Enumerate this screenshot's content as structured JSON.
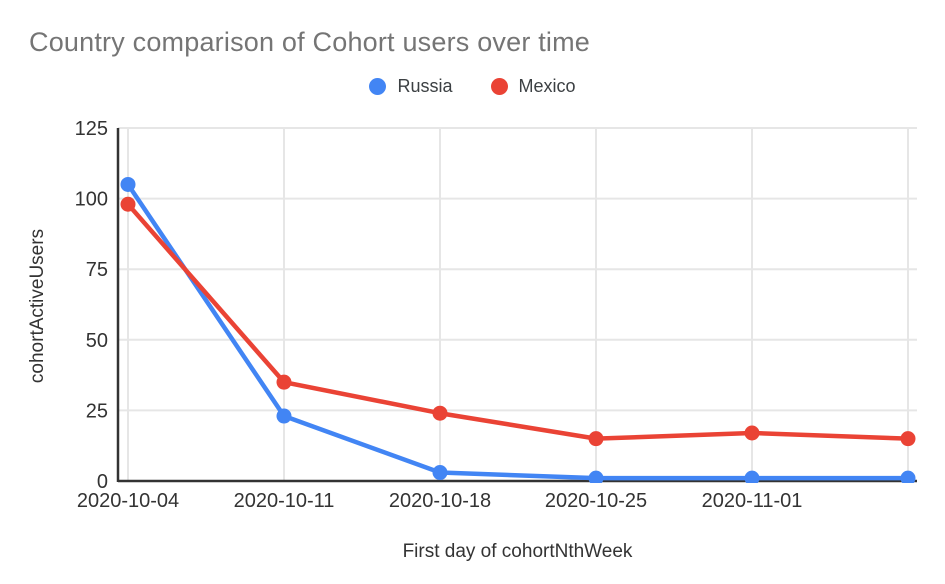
{
  "page": {
    "background": "#ffffff"
  },
  "chart": {
    "title": "Country comparison of Cohort users over time",
    "x_axis_title": "First day of cohortNthWeek",
    "y_axis_title": "cohortActiveUsers"
  },
  "chart_data": {
    "type": "line",
    "title": "Country comparison of Cohort users over time",
    "xlabel": "First day of cohortNthWeek",
    "ylabel": "cohortActiveUsers",
    "categories": [
      "2020-10-04",
      "2020-10-11",
      "2020-10-18",
      "2020-10-25",
      "2020-11-01",
      ""
    ],
    "x_tick_labels": [
      "2020-10-04",
      "2020-10-11",
      "2020-10-18",
      "2020-10-25",
      "2020-11-01",
      ""
    ],
    "series": [
      {
        "name": "Russia",
        "color": "#4285F4",
        "values": [
          105,
          23,
          3,
          1,
          1,
          1
        ]
      },
      {
        "name": "Mexico",
        "color": "#EA4335",
        "values": [
          98,
          35,
          24,
          15,
          17,
          15
        ]
      }
    ],
    "ylim": [
      0,
      125
    ],
    "yticks": [
      0,
      25,
      50,
      75,
      100,
      125
    ],
    "grid": true,
    "legend_position": "top-center",
    "colors": {
      "russia_line": "#4285F4",
      "mexico_line": "#EA4335",
      "gridline": "#e6e6e6",
      "axis_line": "#333333",
      "title_text": "#757575",
      "tick_text": "#333333"
    }
  }
}
